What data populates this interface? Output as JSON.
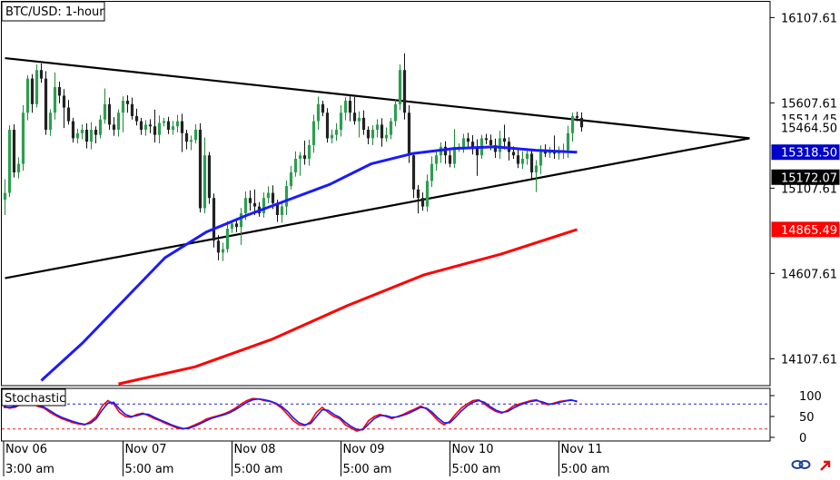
{
  "chart_data": [
    {
      "type": "candlestick",
      "title": "BTC/USD: 1-hour",
      "ylim": [
        13950,
        16200
      ],
      "y_ticks": [
        "16107.61",
        "15607.61",
        "15107.61",
        "14607.61",
        "14107.61"
      ],
      "y_tick_values": [
        16107.61,
        15607.61,
        15107.61,
        14607.61,
        14107.61
      ],
      "price_tags": [
        {
          "label": "15514.45",
          "value": 15514.45,
          "color": "#ffffff"
        },
        {
          "label": "15464.50",
          "value": 15464.5,
          "color": "#ffffff"
        },
        {
          "label": "15318.50",
          "value": 15318.5,
          "color": "#0000cc"
        },
        {
          "label": "15172.07",
          "value": 15172.07,
          "color": "#000000"
        },
        {
          "label": "14865.49",
          "value": 14865.49,
          "color": "#ff0000"
        }
      ],
      "x_dates": [
        "Nov 06",
        "Nov 07",
        "Nov 08",
        "Nov 09",
        "Nov 10",
        "Nov 11"
      ],
      "x_times": [
        "3:00 am",
        "5:00 am",
        "5:00 am",
        "5:00 am",
        "5:00 am",
        "5:00 am"
      ],
      "x_date_positions": [
        0,
        26,
        50,
        74,
        98,
        122
      ],
      "n_bars": 128,
      "candle_closes": [
        15080,
        15450,
        15200,
        15250,
        15550,
        15750,
        15600,
        15800,
        15750,
        15450,
        15550,
        15700,
        15650,
        15580,
        15500,
        15400,
        15430,
        15450,
        15380,
        15450,
        15420,
        15510,
        15600,
        15480,
        15450,
        15550,
        15620,
        15600,
        15530,
        15500,
        15450,
        15480,
        15470,
        15420,
        15490,
        15500,
        15450,
        15470,
        15500,
        15430,
        15380,
        15390,
        15450,
        14990,
        15300,
        15050,
        14800,
        14730,
        14750,
        14870,
        14900,
        14880,
        14960,
        15050,
        15020,
        15000,
        14960,
        15050,
        15080,
        15020,
        14950,
        15000,
        15120,
        15200,
        15280,
        15300,
        15280,
        15360,
        15500,
        15600,
        15550,
        15400,
        15420,
        15450,
        15550,
        15620,
        15550,
        15500,
        15520,
        15450,
        15400,
        15450,
        15480,
        15400,
        15420,
        15500,
        15600,
        15800,
        15550,
        15300,
        15100,
        15050,
        15000,
        15150,
        15250,
        15300,
        15350,
        15300,
        15250,
        15350,
        15350,
        15400,
        15380,
        15350,
        15300,
        15400,
        15390,
        15360,
        15320,
        15400,
        15380,
        15320,
        15300,
        15250,
        15280,
        15310,
        15200,
        15240,
        15320,
        15310,
        15330,
        15310,
        15320,
        15330,
        15430,
        15530,
        15520,
        15464.5
      ],
      "series": [
        {
          "name": "",
          "color": "#1a1aff",
          "x_start": 8,
          "x_end": 126,
          "values": [
            13980,
            14200,
            14450,
            14700,
            14850,
            14950,
            15040,
            15130,
            15250,
            15310,
            15340,
            15350,
            15330,
            15318.5
          ]
        },
        {
          "name": "",
          "color": "#ff0000",
          "x_start": 25,
          "x_end": 126,
          "values": [
            13960,
            14060,
            14220,
            14420,
            14600,
            14720,
            14865.49
          ]
        }
      ],
      "trendlines": [
        {
          "x": [
            0,
            164
          ],
          "y": [
            15870,
            15400
          ]
        },
        {
          "x": [
            0,
            164
          ],
          "y": [
            14580,
            15400
          ]
        }
      ]
    },
    {
      "type": "line",
      "title": "Stochastic",
      "ylim": [
        0,
        100
      ],
      "y_ticks": [
        "100",
        "50",
        "0"
      ],
      "y_tick_values": [
        100,
        50,
        0
      ],
      "levels": [
        80,
        20
      ],
      "series": [
        {
          "name": "",
          "color": "#ff0000",
          "values": [
            75,
            70,
            72,
            80,
            85,
            80,
            74,
            70,
            60,
            52,
            45,
            40,
            35,
            32,
            30,
            38,
            50,
            75,
            88,
            80,
            60,
            50,
            48,
            55,
            58,
            52,
            45,
            40,
            33,
            28,
            22,
            20,
            24,
            30,
            36,
            44,
            48,
            52,
            56,
            62,
            70,
            80,
            88,
            93,
            92,
            88,
            86,
            80,
            70,
            55,
            40,
            30,
            28,
            38,
            60,
            72,
            60,
            50,
            45,
            30,
            22,
            15,
            20,
            40,
            50,
            55,
            50,
            45,
            50,
            55,
            62,
            68,
            75,
            68,
            55,
            40,
            30,
            38,
            55,
            70,
            80,
            88,
            90,
            80,
            70,
            62,
            58,
            65,
            75,
            80,
            84,
            88,
            90,
            82,
            78,
            82,
            86,
            88,
            90,
            85
          ]
        },
        {
          "name": "",
          "color": "#1a1aff",
          "values": [
            72,
            72,
            74,
            78,
            82,
            82,
            77,
            72,
            64,
            55,
            48,
            43,
            38,
            34,
            31,
            34,
            45,
            65,
            82,
            84,
            68,
            55,
            50,
            52,
            56,
            55,
            48,
            42,
            36,
            30,
            25,
            21,
            22,
            27,
            33,
            40,
            46,
            50,
            54,
            59,
            66,
            75,
            84,
            90,
            92,
            90,
            87,
            82,
            74,
            62,
            47,
            35,
            30,
            33,
            50,
            66,
            65,
            55,
            48,
            36,
            26,
            19,
            18,
            32,
            45,
            52,
            52,
            48,
            49,
            53,
            58,
            65,
            72,
            70,
            60,
            46,
            35,
            35,
            48,
            63,
            75,
            84,
            88,
            84,
            74,
            65,
            60,
            62,
            70,
            77,
            82,
            86,
            88,
            85,
            80,
            80,
            84,
            87,
            89,
            87
          ]
        }
      ]
    }
  ],
  "ui": {
    "link_icon": "chain-link-icon",
    "arrow_icon": "red-arrow-icon"
  }
}
